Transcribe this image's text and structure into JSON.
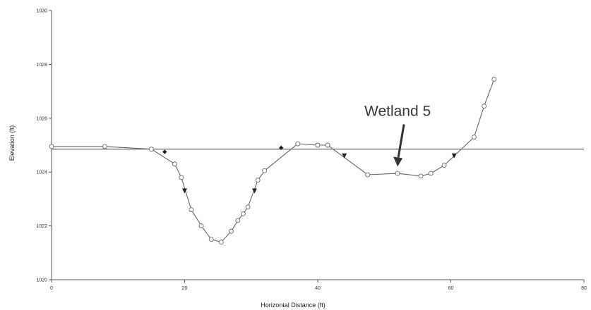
{
  "chart_data": {
    "type": "line",
    "title": "",
    "xlabel": "Horizontal Distance (ft)",
    "ylabel": "Elevation (ft)",
    "xlim": [
      0,
      80
    ],
    "ylim": [
      1020,
      1030
    ],
    "x_ticks": [
      {
        "value": 0,
        "label": "0"
      },
      {
        "value": 20,
        "label": "20"
      },
      {
        "value": 40,
        "label": "40"
      },
      {
        "value": 60,
        "label": "60"
      },
      {
        "value": 80,
        "label": "80"
      }
    ],
    "y_ticks": [
      {
        "value": 1020,
        "label": "1020"
      },
      {
        "value": 1022,
        "label": "1022"
      },
      {
        "value": 1024,
        "label": "1024"
      },
      {
        "value": 1026,
        "label": "1026"
      },
      {
        "value": 1028,
        "label": "1028"
      },
      {
        "value": 1030,
        "label": "1030"
      }
    ],
    "grid": false,
    "legend": "none",
    "series": [
      {
        "points": [
          [
            0,
            1024.95
          ],
          [
            8,
            1024.95
          ],
          [
            15,
            1024.85
          ],
          [
            18.5,
            1024.3
          ],
          [
            19.5,
            1023.8
          ],
          [
            21,
            1022.6
          ],
          [
            22.5,
            1022.0
          ],
          [
            24,
            1021.5
          ],
          [
            25.5,
            1021.4
          ],
          [
            27,
            1021.8
          ],
          [
            28,
            1022.2
          ],
          [
            28.8,
            1022.45
          ],
          [
            29.5,
            1022.7
          ],
          [
            31,
            1023.7
          ],
          [
            32,
            1024.05
          ],
          [
            37,
            1025.05
          ],
          [
            40,
            1025.0
          ],
          [
            41.5,
            1025.0
          ],
          [
            47.5,
            1023.9
          ],
          [
            52,
            1023.95
          ],
          [
            55.5,
            1023.85
          ],
          [
            57,
            1023.95
          ],
          [
            59,
            1024.25
          ],
          [
            63.5,
            1025.3
          ],
          [
            65,
            1026.45
          ],
          [
            66.5,
            1027.45
          ]
        ]
      }
    ],
    "reference_line": {
      "y": 1024.85
    },
    "intersection_markers": [
      {
        "x": 17,
        "y": 1024.75
      },
      {
        "x": 34.5,
        "y": 1024.9
      }
    ],
    "triangle_markers": [
      {
        "x": 20,
        "y": 1023.3
      },
      {
        "x": 30.5,
        "y": 1023.3
      },
      {
        "x": 44,
        "y": 1024.6
      },
      {
        "x": 60.5,
        "y": 1024.6
      }
    ],
    "annotation": {
      "text": "Wetland 5",
      "arrow_tip": {
        "x": 52,
        "y": 1024.2
      }
    }
  }
}
